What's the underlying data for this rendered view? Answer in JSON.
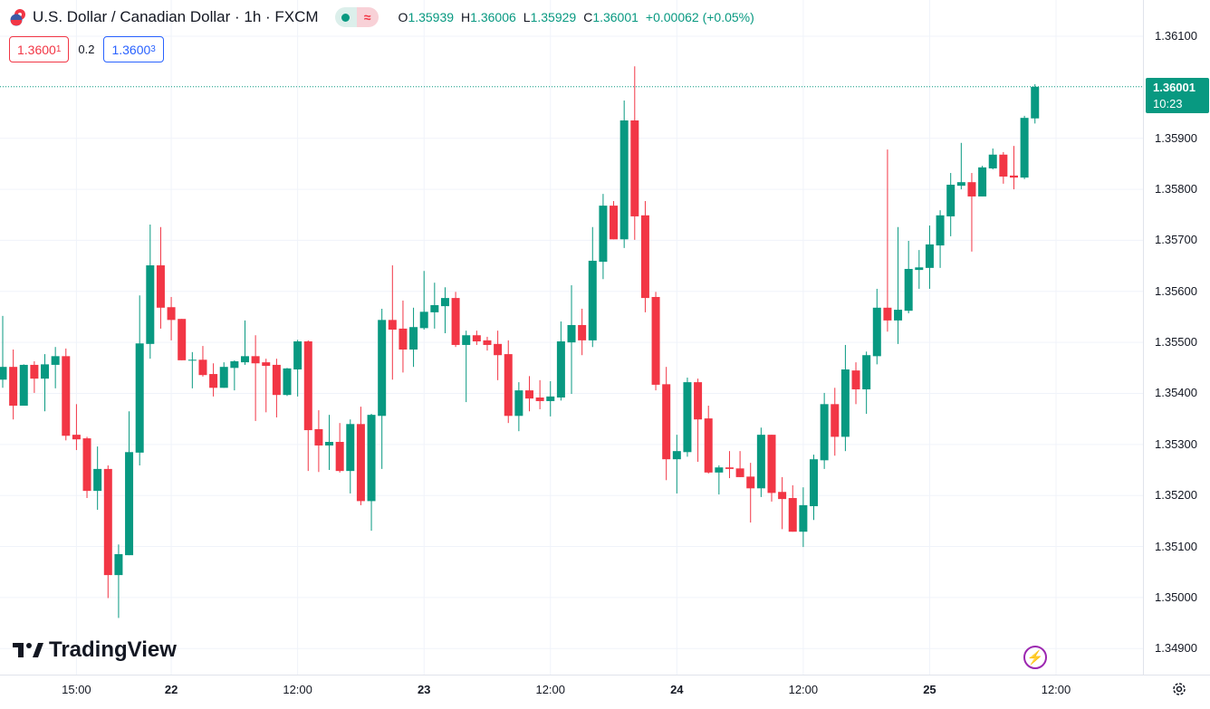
{
  "header": {
    "title": "U.S. Dollar / Canadian Dollar · 1h · FXCM",
    "market_status_icon": "market-open-dot",
    "wave_icon": "≈",
    "ohlc": {
      "o_label": "O",
      "o": "1.35939",
      "h_label": "H",
      "h": "1.36006",
      "l_label": "L",
      "l": "1.35929",
      "c_label": "C",
      "c": "1.36001",
      "change": "+0.00062 (+0.05%)"
    }
  },
  "trade": {
    "bid_main": "1.3600",
    "bid_pip": "1",
    "spread": "0.2",
    "ask_main": "1.3600",
    "ask_pip": "3"
  },
  "current_price": {
    "price": "1.36001",
    "countdown": "10:23"
  },
  "logo_text": "TradingView",
  "colors": {
    "up": "#089981",
    "down": "#f23645",
    "grid": "#f0f3fa",
    "bolt": "#9c27b0"
  },
  "chart_data": {
    "type": "candlestick",
    "title": "U.S. Dollar / Canadian Dollar · 1h · FXCM",
    "ylim": [
      1.34849,
      1.36171
    ],
    "y_ticks": [
      "1.36100",
      "1.35900",
      "1.35800",
      "1.35700",
      "1.35600",
      "1.35500",
      "1.35400",
      "1.35300",
      "1.35200",
      "1.35100",
      "1.35000",
      "1.34900"
    ],
    "x_labels": [
      {
        "index": 7,
        "label": "15:00",
        "day": false
      },
      {
        "index": 16,
        "label": "22",
        "day": true
      },
      {
        "index": 28,
        "label": "12:00",
        "day": false
      },
      {
        "index": 40,
        "label": "23",
        "day": true
      },
      {
        "index": 52,
        "label": "12:00",
        "day": false
      },
      {
        "index": 64,
        "label": "24",
        "day": true
      },
      {
        "index": 76,
        "label": "12:00",
        "day": false
      },
      {
        "index": 88,
        "label": "25",
        "day": true
      },
      {
        "index": 100,
        "label": "12:00",
        "day": false
      }
    ],
    "ohlc": [
      [
        1.35427,
        1.35552,
        1.35411,
        1.35452
      ],
      [
        1.35452,
        1.35486,
        1.35349,
        1.35376
      ],
      [
        1.35376,
        1.35457,
        1.35376,
        1.35456
      ],
      [
        1.35456,
        1.35463,
        1.35401,
        1.35429
      ],
      [
        1.35429,
        1.35477,
        1.35365,
        1.35457
      ],
      [
        1.35456,
        1.35491,
        1.3541,
        1.35473
      ],
      [
        1.35473,
        1.35488,
        1.35308,
        1.35317
      ],
      [
        1.35319,
        1.35379,
        1.35289,
        1.3531
      ],
      [
        1.35312,
        1.35315,
        1.35195,
        1.35209
      ],
      [
        1.35209,
        1.35296,
        1.35172,
        1.35252
      ],
      [
        1.35252,
        1.35259,
        1.34999,
        1.35044
      ],
      [
        1.35044,
        1.35104,
        1.3496,
        1.35085
      ],
      [
        1.35083,
        1.35365,
        1.35083,
        1.35285
      ],
      [
        1.35284,
        1.35592,
        1.35259,
        1.35498
      ],
      [
        1.35497,
        1.35731,
        1.35468,
        1.35651
      ],
      [
        1.35651,
        1.35726,
        1.35527,
        1.35568
      ],
      [
        1.35569,
        1.35589,
        1.35504,
        1.35544
      ],
      [
        1.35546,
        1.35546,
        1.35465,
        1.35465
      ],
      [
        1.35466,
        1.35481,
        1.3541,
        1.35466
      ],
      [
        1.35466,
        1.35493,
        1.35433,
        1.35436
      ],
      [
        1.35438,
        1.35459,
        1.35394,
        1.35411
      ],
      [
        1.35411,
        1.35461,
        1.35411,
        1.35452
      ],
      [
        1.3545,
        1.35465,
        1.35406,
        1.35463
      ],
      [
        1.35461,
        1.35543,
        1.35456,
        1.35473
      ],
      [
        1.35473,
        1.35514,
        1.35346,
        1.35459
      ],
      [
        1.35461,
        1.35468,
        1.35363,
        1.35454
      ],
      [
        1.35456,
        1.35468,
        1.35353,
        1.35397
      ],
      [
        1.35397,
        1.3545,
        1.35395,
        1.35449
      ],
      [
        1.35447,
        1.35505,
        1.35394,
        1.35502
      ],
      [
        1.35502,
        1.35504,
        1.35248,
        1.35328
      ],
      [
        1.3533,
        1.35367,
        1.35246,
        1.35298
      ],
      [
        1.35298,
        1.35358,
        1.3525,
        1.35305
      ],
      [
        1.35305,
        1.35342,
        1.35245,
        1.35248
      ],
      [
        1.35248,
        1.35349,
        1.35204,
        1.3534
      ],
      [
        1.3534,
        1.35374,
        1.35181,
        1.35189
      ],
      [
        1.35189,
        1.3536,
        1.35131,
        1.35358
      ],
      [
        1.35356,
        1.35566,
        1.35252,
        1.35544
      ],
      [
        1.35544,
        1.35651,
        1.35427,
        1.35525
      ],
      [
        1.35527,
        1.35582,
        1.35441,
        1.35486
      ],
      [
        1.35486,
        1.35568,
        1.35452,
        1.3553
      ],
      [
        1.35528,
        1.3564,
        1.35525,
        1.3556
      ],
      [
        1.35559,
        1.35617,
        1.35527,
        1.35573
      ],
      [
        1.35571,
        1.35608,
        1.35518,
        1.35587
      ],
      [
        1.35587,
        1.35599,
        1.35491,
        1.35495
      ],
      [
        1.35495,
        1.35523,
        1.35383,
        1.35514
      ],
      [
        1.35514,
        1.35523,
        1.35495,
        1.35502
      ],
      [
        1.35504,
        1.35511,
        1.35484,
        1.35495
      ],
      [
        1.35497,
        1.35523,
        1.35426,
        1.35475
      ],
      [
        1.35477,
        1.35504,
        1.35342,
        1.35356
      ],
      [
        1.35356,
        1.35422,
        1.35326,
        1.35406
      ],
      [
        1.35406,
        1.35434,
        1.35365,
        1.3539
      ],
      [
        1.35392,
        1.35426,
        1.35369,
        1.35385
      ],
      [
        1.35385,
        1.35424,
        1.35355,
        1.35394
      ],
      [
        1.35392,
        1.35541,
        1.35386,
        1.35502
      ],
      [
        1.355,
        1.35612,
        1.35399,
        1.35534
      ],
      [
        1.35534,
        1.35566,
        1.35475,
        1.35504
      ],
      [
        1.35504,
        1.35726,
        1.35491,
        1.3566
      ],
      [
        1.35658,
        1.35791,
        1.35624,
        1.35768
      ],
      [
        1.35768,
        1.35777,
        1.35702,
        1.35702
      ],
      [
        1.35702,
        1.35974,
        1.35685,
        1.35935
      ],
      [
        1.35935,
        1.36041,
        1.35701,
        1.35747
      ],
      [
        1.35749,
        1.35777,
        1.35559,
        1.35587
      ],
      [
        1.35589,
        1.35599,
        1.35406,
        1.35417
      ],
      [
        1.35418,
        1.35452,
        1.3523,
        1.35271
      ],
      [
        1.35271,
        1.35319,
        1.35204,
        1.35287
      ],
      [
        1.35285,
        1.35431,
        1.35276,
        1.35422
      ],
      [
        1.35422,
        1.35429,
        1.35266,
        1.35349
      ],
      [
        1.35351,
        1.35376,
        1.35243,
        1.35245
      ],
      [
        1.35245,
        1.35259,
        1.35202,
        1.35255
      ],
      [
        1.35255,
        1.35287,
        1.35234,
        1.35252
      ],
      [
        1.35253,
        1.35287,
        1.35236,
        1.35236
      ],
      [
        1.35237,
        1.35264,
        1.35147,
        1.35214
      ],
      [
        1.35214,
        1.35333,
        1.35197,
        1.35319
      ],
      [
        1.35319,
        1.35319,
        1.35188,
        1.35205
      ],
      [
        1.35207,
        1.35236,
        1.35134,
        1.35193
      ],
      [
        1.35195,
        1.3522,
        1.35129,
        1.35129
      ],
      [
        1.35129,
        1.35216,
        1.35099,
        1.35181
      ],
      [
        1.35179,
        1.3528,
        1.35152,
        1.35271
      ],
      [
        1.35269,
        1.35401,
        1.35252,
        1.35379
      ],
      [
        1.35379,
        1.35411,
        1.35278,
        1.35315
      ],
      [
        1.35315,
        1.35495,
        1.35287,
        1.35447
      ],
      [
        1.35445,
        1.35461,
        1.35379,
        1.35408
      ],
      [
        1.35408,
        1.35482,
        1.3536,
        1.35475
      ],
      [
        1.35473,
        1.35605,
        1.35457,
        1.35568
      ],
      [
        1.35568,
        1.35878,
        1.35521,
        1.35543
      ],
      [
        1.35543,
        1.35726,
        1.35497,
        1.35564
      ],
      [
        1.35562,
        1.35699,
        1.35557,
        1.35644
      ],
      [
        1.35642,
        1.35681,
        1.35605,
        1.35647
      ],
      [
        1.35646,
        1.35729,
        1.35605,
        1.35692
      ],
      [
        1.3569,
        1.35759,
        1.35646,
        1.35749
      ],
      [
        1.35747,
        1.35832,
        1.35708,
        1.35809
      ],
      [
        1.35807,
        1.35891,
        1.358,
        1.35814
      ],
      [
        1.35814,
        1.35832,
        1.35678,
        1.35786
      ],
      [
        1.35786,
        1.35846,
        1.35786,
        1.35843
      ],
      [
        1.35841,
        1.3588,
        1.35839,
        1.35868
      ],
      [
        1.35868,
        1.35873,
        1.35811,
        1.35825
      ],
      [
        1.35827,
        1.35885,
        1.358,
        1.35823
      ],
      [
        1.35823,
        1.35944,
        1.3582,
        1.3594
      ],
      [
        1.35939,
        1.36006,
        1.35929,
        1.36001
      ]
    ]
  }
}
